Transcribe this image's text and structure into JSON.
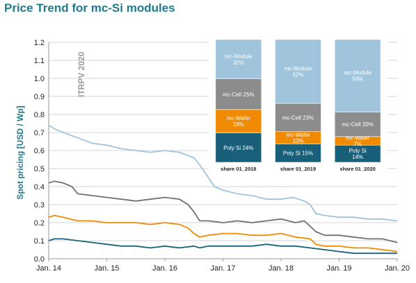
{
  "title": "Price Trend for mc-Si modules",
  "chart_data": [
    {
      "type": "line",
      "ylabel": "Spot pricing [USD / Wp]",
      "ylim": [
        0,
        1.2
      ],
      "yticks": [
        "0.0",
        "0.1",
        "0.2",
        "0.3",
        "0.4",
        "0.5",
        "0.6",
        "0.7",
        "0.8",
        "0.9",
        "1.0",
        "1.1",
        "1.2"
      ],
      "xlim": [
        2014.0,
        2020.0
      ],
      "xticks": [
        {
          "x": 2014.0,
          "label": "Jan. 14"
        },
        {
          "x": 2015.0,
          "label": "Jan. 15"
        },
        {
          "x": 2016.0,
          "label": "Jan. 16"
        },
        {
          "x": 2017.0,
          "label": "Jan. 17"
        },
        {
          "x": 2018.0,
          "label": "Jan. 18"
        },
        {
          "x": 2019.0,
          "label": "Jan. 19"
        },
        {
          "x": 2020.0,
          "label": "Jan. 20"
        }
      ],
      "grid": true,
      "watermark": "ITRPV 2020",
      "series": [
        {
          "color": "#9fc4dc",
          "x": [
            2014.0,
            2014.1,
            2014.25,
            2014.5,
            2014.75,
            2015.0,
            2015.25,
            2015.5,
            2015.75,
            2016.0,
            2016.25,
            2016.5,
            2016.6,
            2016.75,
            2016.85,
            2017.0,
            2017.25,
            2017.5,
            2017.75,
            2018.0,
            2018.2,
            2018.4,
            2018.5,
            2018.6,
            2018.75,
            2019.0,
            2019.25,
            2019.5,
            2019.75,
            2020.0
          ],
          "y": [
            0.74,
            0.72,
            0.7,
            0.67,
            0.64,
            0.63,
            0.61,
            0.6,
            0.59,
            0.6,
            0.59,
            0.56,
            0.52,
            0.45,
            0.4,
            0.38,
            0.36,
            0.35,
            0.33,
            0.33,
            0.34,
            0.32,
            0.3,
            0.25,
            0.24,
            0.23,
            0.23,
            0.22,
            0.22,
            0.21
          ]
        },
        {
          "color": "#707070",
          "x": [
            2014.0,
            2014.1,
            2014.25,
            2014.4,
            2014.5,
            2014.75,
            2015.0,
            2015.25,
            2015.5,
            2015.75,
            2016.0,
            2016.25,
            2016.4,
            2016.5,
            2016.6,
            2016.75,
            2017.0,
            2017.25,
            2017.5,
            2017.75,
            2018.0,
            2018.25,
            2018.4,
            2018.5,
            2018.6,
            2018.75,
            2019.0,
            2019.25,
            2019.5,
            2019.75,
            2020.0
          ],
          "y": [
            0.42,
            0.43,
            0.42,
            0.4,
            0.36,
            0.35,
            0.34,
            0.33,
            0.32,
            0.33,
            0.34,
            0.33,
            0.3,
            0.26,
            0.21,
            0.21,
            0.2,
            0.21,
            0.2,
            0.21,
            0.22,
            0.2,
            0.21,
            0.18,
            0.15,
            0.13,
            0.13,
            0.12,
            0.11,
            0.11,
            0.09
          ]
        },
        {
          "color": "#f08a00",
          "x": [
            2014.0,
            2014.1,
            2014.25,
            2014.5,
            2014.75,
            2015.0,
            2015.25,
            2015.5,
            2015.75,
            2016.0,
            2016.25,
            2016.4,
            2016.5,
            2016.6,
            2016.75,
            2017.0,
            2017.25,
            2017.5,
            2017.75,
            2018.0,
            2018.25,
            2018.5,
            2018.6,
            2018.75,
            2019.0,
            2019.25,
            2019.5,
            2019.75,
            2020.0
          ],
          "y": [
            0.23,
            0.24,
            0.23,
            0.21,
            0.21,
            0.2,
            0.2,
            0.2,
            0.19,
            0.2,
            0.19,
            0.17,
            0.14,
            0.12,
            0.13,
            0.14,
            0.14,
            0.13,
            0.13,
            0.14,
            0.12,
            0.11,
            0.08,
            0.07,
            0.07,
            0.06,
            0.06,
            0.05,
            0.04
          ]
        },
        {
          "color": "#1a5f7a",
          "x": [
            2014.0,
            2014.1,
            2014.25,
            2014.5,
            2014.75,
            2015.0,
            2015.25,
            2015.5,
            2015.75,
            2016.0,
            2016.25,
            2016.5,
            2016.6,
            2016.75,
            2017.0,
            2017.25,
            2017.5,
            2017.75,
            2018.0,
            2018.25,
            2018.5,
            2018.75,
            2019.0,
            2019.25,
            2019.5,
            2019.75,
            2020.0
          ],
          "y": [
            0.1,
            0.11,
            0.11,
            0.1,
            0.09,
            0.08,
            0.07,
            0.07,
            0.06,
            0.07,
            0.06,
            0.07,
            0.06,
            0.07,
            0.07,
            0.07,
            0.07,
            0.08,
            0.07,
            0.07,
            0.06,
            0.05,
            0.04,
            0.03,
            0.03,
            0.03,
            0.03
          ]
        }
      ]
    },
    {
      "type": "bar",
      "stacked": true,
      "categories": [
        "share 01_2018",
        "share 01_2019",
        "share 01_2020"
      ],
      "series": [
        {
          "color": "#1a5f7a",
          "text_color": "#ffffff",
          "values": [
            24,
            15,
            14
          ],
          "labels": [
            "Poly Si 24%",
            "Poly Si 15%",
            "Poly Si\n14%"
          ]
        },
        {
          "color": "#f08a00",
          "text_color": "#ffffff",
          "values": [
            19,
            10,
            7
          ],
          "labels": [
            "mc-Wafer\n19%",
            "mc-Wafer\n10%",
            "mc-Wafer\n7%"
          ]
        },
        {
          "color": "#8c8c8c",
          "text_color": "#ffffff",
          "values": [
            25,
            23,
            20
          ],
          "labels": [
            "mc-Cell 25%",
            "mc-Cell 23%",
            "mc-Cell 20%"
          ]
        },
        {
          "color": "#9fc4dc",
          "text_color": "#ffffff",
          "values": [
            32,
            52,
            59
          ],
          "labels": [
            "mc-Module\n32%",
            "mc-Module\n52%",
            "mc-Module\n59%"
          ]
        }
      ]
    }
  ]
}
